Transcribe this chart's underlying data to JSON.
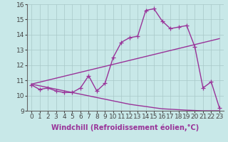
{
  "xlabel": "Windchill (Refroidissement éolien,°C)",
  "x": [
    0,
    1,
    2,
    3,
    4,
    5,
    6,
    7,
    8,
    9,
    10,
    11,
    12,
    13,
    14,
    15,
    16,
    17,
    18,
    19,
    20,
    21,
    22,
    23
  ],
  "line1": [
    10.7,
    10.4,
    10.5,
    10.3,
    10.2,
    10.2,
    10.5,
    11.3,
    10.3,
    10.8,
    12.5,
    13.5,
    13.8,
    13.9,
    15.6,
    15.7,
    14.9,
    14.4,
    14.5,
    14.6,
    13.2,
    10.5,
    10.9,
    9.2
  ],
  "line2": [
    10.75,
    10.88,
    11.01,
    11.14,
    11.27,
    11.4,
    11.53,
    11.66,
    11.79,
    11.92,
    12.05,
    12.18,
    12.31,
    12.44,
    12.57,
    12.7,
    12.83,
    12.96,
    13.09,
    13.22,
    13.35,
    13.48,
    13.61,
    13.74
  ],
  "line3": [
    10.75,
    10.64,
    10.53,
    10.42,
    10.31,
    10.2,
    10.09,
    9.98,
    9.87,
    9.76,
    9.65,
    9.54,
    9.43,
    9.35,
    9.28,
    9.2,
    9.13,
    9.1,
    9.07,
    9.04,
    9.02,
    9.0,
    9.0,
    9.0
  ],
  "line_color": "#993399",
  "bg_color": "#c8e8e8",
  "grid_color": "#a8c8c8",
  "ylim": [
    9,
    16
  ],
  "yticks": [
    9,
    10,
    11,
    12,
    13,
    14,
    15,
    16
  ],
  "xlim": [
    -0.5,
    23.5
  ],
  "marker": "+",
  "markersize": 4,
  "linewidth": 1.0,
  "tick_fontsize": 6.5,
  "label_fontsize": 7.0
}
